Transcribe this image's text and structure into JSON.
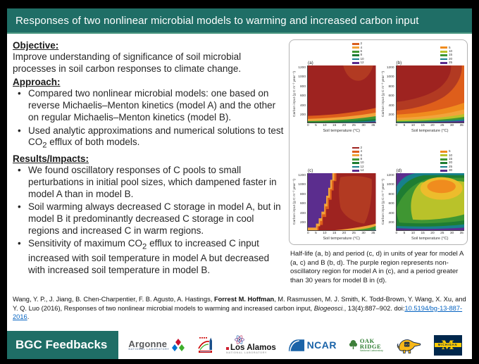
{
  "slide": {
    "title": "Responses of two nonlinear microbial models to warming and increased carbon input",
    "colors": {
      "header_bg": "#1F6E66",
      "link": "#0563C1",
      "frame": "#000000"
    },
    "objective": {
      "heading": "Objective:",
      "text": "Improve understanding of significance of soil microbial processes in soil carbon responses to climate change."
    },
    "approach": {
      "heading": "Approach:",
      "bullets": [
        [
          {
            "t": "Compared two nonlinear microbial models: one based on reverse Michaelis–Menton kinetics (model A) and the other on regular Michaelis–Menton kinetics (model B)."
          }
        ],
        [
          {
            "t": "Used analytic approximations and numerical solutions to test CO"
          },
          {
            "t": "2",
            "style": "sub"
          },
          {
            "t": " efflux of both models."
          }
        ]
      ]
    },
    "results": {
      "heading": "Results/Impacts:",
      "bullets": [
        [
          {
            "t": "We found oscillatory responses of C pools to small perturbations in initial pool sizes, which dampened faster in model A than in model B."
          }
        ],
        [
          {
            "t": "Soil warming always decreased C storage in model A, but in model B it predominantly decreased C storage in cool regions and increased C in warm regions."
          }
        ],
        [
          {
            "t": "Sensitivity of maximum CO"
          },
          {
            "t": "2",
            "style": "sub"
          },
          {
            "t": " efflux to increased C input increased with soil temperature in model A but decreased with increased soil temperature in model B."
          }
        ]
      ]
    },
    "citation": {
      "parts": [
        {
          "t": "Wang, Y. P., J. Jiang, B. Chen-Charpentier, F. B. Agusto, A. Hastings, "
        },
        {
          "t": "Forrest M. Hoffman",
          "style": "bold"
        },
        {
          "t": ", M. Rasmussen, M. J. Smith, K. Todd-Brown, Y. Wang, X. Xu, and Y. Q. Luo (2016), Responses of two nonlinear microbial models to warming and increased carbon input, "
        },
        {
          "t": "Biogeosci.",
          "style": "italic"
        },
        {
          "t": ", 13(4):887–902. doi:"
        },
        {
          "t": "10.5194/bg-13-887-2016",
          "style": "link"
        },
        {
          "t": "."
        }
      ]
    },
    "footer": {
      "label": "BGC Feedbacks",
      "logos": [
        {
          "name": "argonne",
          "text": "Argonne",
          "subtext": "NATIONAL LABORATORY"
        },
        {
          "name": "berkeley-lab"
        },
        {
          "name": "los-alamos",
          "text": "Los Alamos",
          "subtext": "NATIONAL LABORATORY"
        },
        {
          "name": "ncar",
          "text": "NCAR"
        },
        {
          "name": "oak-ridge",
          "text": "OAK",
          "text2": "RIDGE",
          "subtext": "National Laboratory"
        },
        {
          "name": "uci-anteater",
          "text": "UCI"
        },
        {
          "name": "michigan",
          "text": "M",
          "subtext": "MICHIGAN"
        }
      ]
    }
  },
  "figure": {
    "caption": "Half-life (a, b) and period (c, d) in units of year for model A (a, c) and B (b, d). The purple region represents non-oscillatory region for model A in (c), and a period greater than 30 years for model B in (d).",
    "xlabel": "Soil temperature (°C)",
    "ylabel": "Carbon input (g C m⁻² year⁻¹)",
    "xticks": [
      "0",
      "5",
      "10",
      "15",
      "20",
      "25",
      "30",
      "35"
    ],
    "yticks": [
      "1200",
      "1000",
      "800",
      "600",
      "400",
      "200"
    ],
    "panels": [
      {
        "label": "(a)",
        "legend": [
          {
            "v": "2",
            "c": "#D95F1E"
          },
          {
            "v": "4",
            "c": "#F2A33A"
          },
          {
            "v": "6",
            "c": "#3F9632"
          },
          {
            "v": "8",
            "c": "#1E7D32"
          },
          {
            "v": "10",
            "c": "#17808C"
          },
          {
            "v": "12",
            "c": "#5B2D8E"
          }
        ]
      },
      {
        "label": "(b)",
        "legend": [
          {
            "v": "5",
            "c": "#F08C1E"
          },
          {
            "v": "10",
            "c": "#B9C22A"
          },
          {
            "v": "15",
            "c": "#3F9632"
          },
          {
            "v": "20",
            "c": "#17808C"
          },
          {
            "v": "25",
            "c": "#5B2D8E"
          }
        ]
      },
      {
        "label": "(c)",
        "legend": [
          {
            "v": "2",
            "c": "#9E2320"
          },
          {
            "v": "4",
            "c": "#DE5E1B"
          },
          {
            "v": "6",
            "c": "#F2A33A"
          },
          {
            "v": "8",
            "c": "#3F9632"
          },
          {
            "v": "10",
            "c": "#1E7D32"
          },
          {
            "v": "12",
            "c": "#17808C"
          },
          {
            "v": "14",
            "c": "#5B2D8E"
          }
        ]
      },
      {
        "label": "(d)",
        "legend": [
          {
            "v": "5",
            "c": "#F08C1E"
          },
          {
            "v": "10",
            "c": "#B9C22A"
          },
          {
            "v": "15",
            "c": "#3F9632"
          },
          {
            "v": "20",
            "c": "#1E7D32"
          },
          {
            "v": "25",
            "c": "#17808C"
          },
          {
            "v": "30",
            "c": "#5B2D8E"
          }
        ]
      }
    ]
  },
  "chart_data": [
    {
      "type": "heatmap",
      "panel": "(a)",
      "title": "Half-life in years, model A",
      "xlabel": "Soil temperature (°C)",
      "ylabel": "Carbon input (g C m⁻² year⁻¹)",
      "x_ticks": [
        0,
        5,
        10,
        15,
        20,
        25,
        30,
        35
      ],
      "y_ticks": [
        200,
        400,
        600,
        800,
        1000,
        1200
      ],
      "contour_levels": [
        2,
        4,
        6,
        8,
        10,
        12
      ],
      "pattern": "Half-life below 2 years (dark red) over nearly the whole domain; bands of longer half-life (orange, amber, green, teal, purple) appear only at very low carbon input along the bottom edge, widening toward high soil temperature."
    },
    {
      "type": "heatmap",
      "panel": "(b)",
      "title": "Half-life in years, model B",
      "xlabel": "Soil temperature (°C)",
      "ylabel": "Carbon input (g C m⁻² year⁻¹)",
      "x_ticks": [
        0,
        5,
        10,
        15,
        20,
        25,
        30,
        35
      ],
      "y_ticks": [
        200,
        400,
        600,
        800,
        1000,
        1200
      ],
      "contour_levels": [
        5,
        10,
        15,
        20,
        25
      ],
      "pattern": "Shortest half-life (dark red) at high carbon input and cooler temperatures in the upper left; half-life increases toward low carbon input, with orange, yellow-green, green, teal and purple (>25 yr) bands stacked along the bottom edge and rising at warm temperatures."
    },
    {
      "type": "heatmap",
      "panel": "(c)",
      "title": "Period in years, model A",
      "xlabel": "Soil temperature (°C)",
      "ylabel": "Carbon input (g C m⁻² year⁻¹)",
      "x_ticks": [
        0,
        5,
        10,
        15,
        20,
        25,
        30,
        35
      ],
      "y_ticks": [
        200,
        400,
        600,
        800,
        1000,
        1200
      ],
      "contour_levels": [
        2,
        4,
        6,
        8,
        10,
        12,
        14
      ],
      "pattern": "Purple non-oscillatory region at soil temperatures below roughly 5–13 °C with a stair-stepped boundary; period under 2 years (dark red) across warmer temperatures; longer-period amber/green/teal bands along the bottom-right edge."
    },
    {
      "type": "heatmap",
      "panel": "(d)",
      "title": "Period in years, model B",
      "xlabel": "Soil temperature (°C)",
      "ylabel": "Carbon input (g C m⁻² year⁻¹)",
      "x_ticks": [
        0,
        5,
        10,
        15,
        20,
        25,
        30,
        35
      ],
      "y_ticks": [
        200,
        400,
        600,
        800,
        1000,
        1200
      ],
      "contour_levels": [
        5,
        10,
        15,
        20,
        25,
        30
      ],
      "pattern": "Period near 5 years (orange core) at high carbon input around 20–30 °C, lengthening outward through yellow-green and green bands to teal, with purple (period greater than 30 years) along the bottom edge and in the cold high-input corner."
    }
  ]
}
